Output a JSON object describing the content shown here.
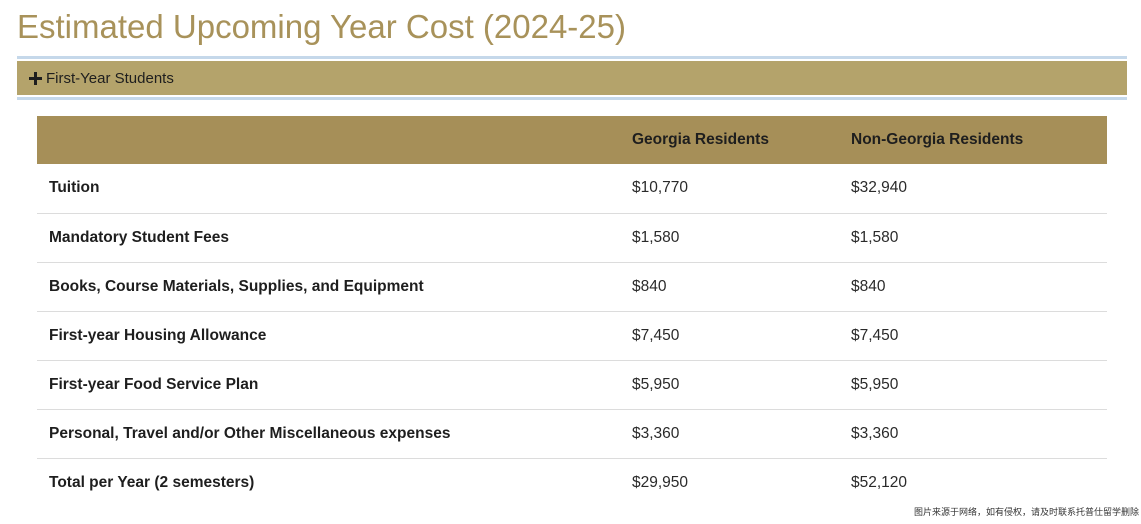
{
  "page": {
    "title": "Estimated Upcoming Year Cost (2024-25)"
  },
  "accordion": {
    "label": "First-Year Students",
    "icon": "plus-icon",
    "colors": {
      "bar": "#b4a36b",
      "border": "#c5d8ea"
    }
  },
  "table": {
    "headers": [
      "",
      "Georgia Residents",
      "Non-Georgia Residents"
    ],
    "rows": [
      {
        "label": "Tuition",
        "georgia": "$10,770",
        "non_georgia": "$32,940"
      },
      {
        "label": "Mandatory Student Fees",
        "georgia": "$1,580",
        "non_georgia": "$1,580"
      },
      {
        "label": "Books, Course Materials, Supplies, and Equipment",
        "georgia": "$840",
        "non_georgia": "$840"
      },
      {
        "label": "First-year Housing Allowance",
        "georgia": "$7,450",
        "non_georgia": "$7,450"
      },
      {
        "label": "First-year Food Service Plan",
        "georgia": "$5,950",
        "non_georgia": "$5,950"
      },
      {
        "label": "Personal, Travel and/or Other Miscellaneous expenses",
        "georgia": "$3,360",
        "non_georgia": "$3,360"
      },
      {
        "label": "Total per Year (2 semesters)",
        "georgia": "$29,950",
        "non_georgia": "$52,120"
      }
    ],
    "colors": {
      "header": "#a68f58",
      "title": "#a8925a"
    }
  },
  "watermark": "图片来源于网络，如有侵权，请及时联系托普仕留学删除"
}
